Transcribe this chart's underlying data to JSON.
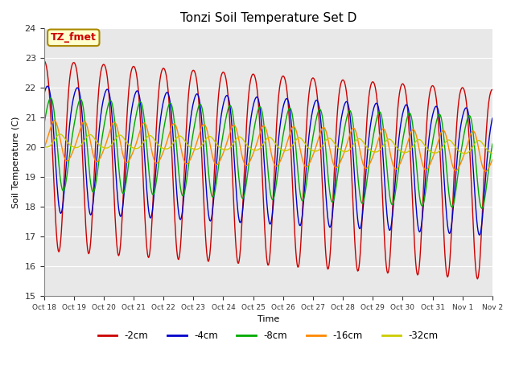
{
  "title": "Tonzi Soil Temperature Set D",
  "ylabel": "Soil Temperature (C)",
  "xlabel": "Time",
  "ylim": [
    15.0,
    24.0
  ],
  "yticks": [
    15.0,
    16.0,
    17.0,
    18.0,
    19.0,
    20.0,
    21.0,
    22.0,
    23.0,
    24.0
  ],
  "colors": {
    "-2cm": "#CC0000",
    "-4cm": "#0000CC",
    "-8cm": "#00AA00",
    "-16cm": "#FF8800",
    "-32cm": "#CCCC00"
  },
  "legend_labels": [
    "-2cm",
    "-4cm",
    "-8cm",
    "-16cm",
    "-32cm"
  ],
  "annotation_label": "TZ_fmet",
  "annotation_color": "#CC0000",
  "annotation_bg": "#FFFFCC",
  "annotation_edge": "#AA8800",
  "bg_color": "#E8E8E8",
  "n_days": 15,
  "start_day": 18,
  "base_temp": 20.2,
  "amp_2cm": 3.2,
  "amp_4cm": 2.1,
  "amp_8cm": 1.5,
  "amp_16cm": 0.65,
  "amp_32cm": 0.22,
  "phase_4cm": 0.08,
  "phase_8cm": 0.18,
  "phase_16cm": 0.32,
  "phase_32cm": 0.55,
  "trend_2cm": -0.065,
  "trend_4cm": -0.052,
  "trend_8cm": -0.042,
  "trend_16cm": -0.025,
  "trend_32cm": -0.015,
  "peak_sharpness": 2.5
}
